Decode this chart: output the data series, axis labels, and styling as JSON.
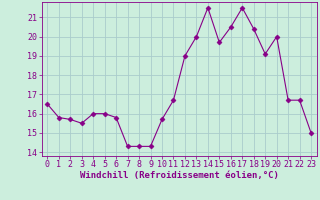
{
  "x": [
    0,
    1,
    2,
    3,
    4,
    5,
    6,
    7,
    8,
    9,
    10,
    11,
    12,
    13,
    14,
    15,
    16,
    17,
    18,
    19,
    20,
    21,
    22,
    23
  ],
  "y": [
    16.5,
    15.8,
    15.7,
    15.5,
    16.0,
    16.0,
    15.8,
    14.3,
    14.3,
    14.3,
    15.7,
    16.7,
    19.0,
    20.0,
    21.5,
    19.7,
    20.5,
    21.5,
    20.4,
    19.1,
    20.0,
    16.7,
    16.7,
    15.0
  ],
  "line_color": "#880088",
  "marker": "D",
  "marker_size": 2.5,
  "bg_color": "#cceedd",
  "grid_color": "#aacccc",
  "xlabel": "Windchill (Refroidissement éolien,°C)",
  "xlabel_fontsize": 6.5,
  "tick_fontsize": 6,
  "ylim": [
    13.8,
    21.8
  ],
  "yticks": [
    14,
    15,
    16,
    17,
    18,
    19,
    20,
    21
  ],
  "xlim": [
    -0.5,
    23.5
  ],
  "xticks": [
    0,
    1,
    2,
    3,
    4,
    5,
    6,
    7,
    8,
    9,
    10,
    11,
    12,
    13,
    14,
    15,
    16,
    17,
    18,
    19,
    20,
    21,
    22,
    23
  ]
}
